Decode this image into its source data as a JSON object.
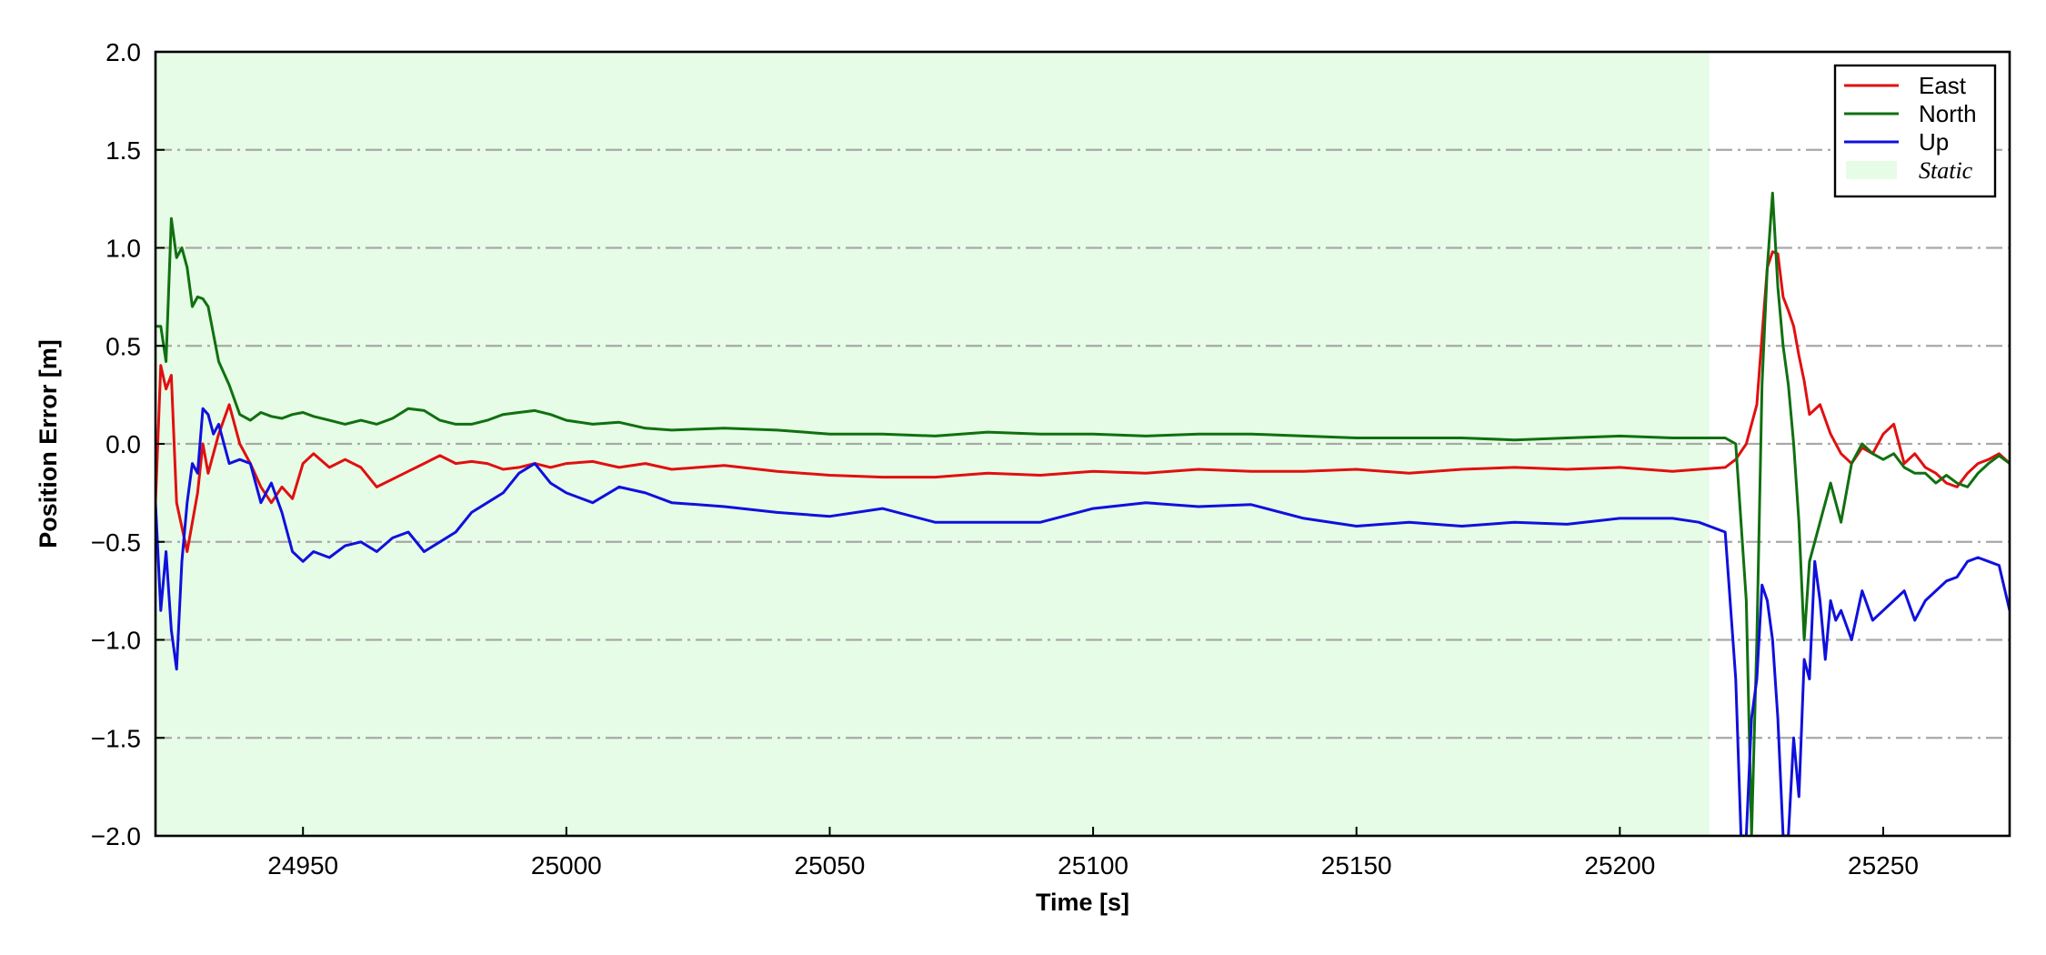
{
  "chart_data": {
    "type": "line",
    "title": "",
    "xlabel": "Time [s]",
    "ylabel": "Position Error [m]",
    "xlim": [
      24922,
      25274
    ],
    "ylim": [
      -2.0,
      2.0
    ],
    "x_ticks": [
      24950,
      25000,
      25050,
      25100,
      25150,
      25200,
      25250
    ],
    "y_ticks": [
      -2.0,
      -1.5,
      -1.0,
      -0.5,
      0.0,
      0.5,
      1.0,
      1.5,
      2.0
    ],
    "x_tick_labels": [
      "24950",
      "25000",
      "25050",
      "25100",
      "25150",
      "25200",
      "25250"
    ],
    "y_tick_labels": [
      "−2.0",
      "−1.5",
      "−1.0",
      "−0.5",
      "0.0",
      "0.5",
      "1.0",
      "1.5",
      "2.0"
    ],
    "grid": "horizontal dash-dot",
    "legend_position": "top-right",
    "static_region": {
      "label": "Static",
      "x_start": 24922,
      "x_end": 25217,
      "color": "#e6fce6"
    },
    "series": [
      {
        "name": "East",
        "color": "#e01010",
        "x": [
          24922,
          24923,
          24924,
          24925,
          24926,
          24928,
          24930,
          24931,
          24932,
          24934,
          24936,
          24938,
          24940,
          24942,
          24944,
          24946,
          24948,
          24950,
          24952,
          24955,
          24958,
          24961,
          24964,
          24967,
          24970,
          24973,
          24976,
          24979,
          24982,
          24985,
          24988,
          24991,
          24994,
          24997,
          25000,
          25005,
          25010,
          25015,
          25020,
          25030,
          25040,
          25050,
          25060,
          25070,
          25080,
          25090,
          25100,
          25110,
          25120,
          25130,
          25140,
          25150,
          25160,
          25170,
          25180,
          25190,
          25200,
          25210,
          25215,
          25220,
          25222,
          25224,
          25226,
          25227,
          25228,
          25229,
          25230,
          25231,
          25232,
          25233,
          25234,
          25235,
          25236,
          25238,
          25240,
          25242,
          25244,
          25246,
          25248,
          25250,
          25252,
          25254,
          25256,
          25258,
          25260,
          25262,
          25264,
          25266,
          25268,
          25270,
          25272,
          25274
        ],
        "y": [
          -0.3,
          0.4,
          0.28,
          0.35,
          -0.3,
          -0.55,
          -0.25,
          0.0,
          -0.15,
          0.05,
          0.2,
          0.0,
          -0.1,
          -0.22,
          -0.3,
          -0.22,
          -0.28,
          -0.1,
          -0.05,
          -0.12,
          -0.08,
          -0.12,
          -0.22,
          -0.18,
          -0.14,
          -0.1,
          -0.06,
          -0.1,
          -0.09,
          -0.1,
          -0.13,
          -0.12,
          -0.1,
          -0.12,
          -0.1,
          -0.09,
          -0.12,
          -0.1,
          -0.13,
          -0.11,
          -0.14,
          -0.16,
          -0.17,
          -0.17,
          -0.15,
          -0.16,
          -0.14,
          -0.15,
          -0.13,
          -0.14,
          -0.14,
          -0.13,
          -0.15,
          -0.13,
          -0.12,
          -0.13,
          -0.12,
          -0.14,
          -0.13,
          -0.12,
          -0.08,
          0.0,
          0.2,
          0.55,
          0.9,
          0.98,
          0.97,
          0.75,
          0.68,
          0.6,
          0.45,
          0.32,
          0.15,
          0.2,
          0.05,
          -0.05,
          -0.1,
          -0.02,
          -0.05,
          0.05,
          0.1,
          -0.1,
          -0.05,
          -0.12,
          -0.15,
          -0.2,
          -0.22,
          -0.15,
          -0.1,
          -0.08,
          -0.05,
          -0.1
        ]
      },
      {
        "name": "North",
        "color": "#107010",
        "x": [
          24922,
          24923,
          24924,
          24925,
          24926,
          24927,
          24928,
          24929,
          24930,
          24931,
          24932,
          24934,
          24936,
          24938,
          24940,
          24942,
          24944,
          24946,
          24948,
          24950,
          24952,
          24955,
          24958,
          24961,
          24964,
          24967,
          24970,
          24973,
          24976,
          24979,
          24982,
          24985,
          24988,
          24991,
          24994,
          24997,
          25000,
          25005,
          25010,
          25015,
          25020,
          25030,
          25040,
          25050,
          25060,
          25070,
          25080,
          25090,
          25100,
          25110,
          25120,
          25130,
          25140,
          25150,
          25160,
          25170,
          25180,
          25190,
          25200,
          25210,
          25215,
          25220,
          25222,
          25224,
          25225,
          25226,
          25227,
          25228,
          25229,
          25230,
          25231,
          25232,
          25233,
          25234,
          25235,
          25236,
          25238,
          25240,
          25242,
          25244,
          25246,
          25248,
          25250,
          25252,
          25254,
          25256,
          25258,
          25260,
          25262,
          25264,
          25266,
          25268,
          25270,
          25272,
          25274
        ],
        "y": [
          0.6,
          0.6,
          0.42,
          1.15,
          0.95,
          1.0,
          0.9,
          0.7,
          0.75,
          0.74,
          0.7,
          0.42,
          0.3,
          0.15,
          0.12,
          0.16,
          0.14,
          0.13,
          0.15,
          0.16,
          0.14,
          0.12,
          0.1,
          0.12,
          0.1,
          0.13,
          0.18,
          0.17,
          0.12,
          0.1,
          0.1,
          0.12,
          0.15,
          0.16,
          0.17,
          0.15,
          0.12,
          0.1,
          0.11,
          0.08,
          0.07,
          0.08,
          0.07,
          0.05,
          0.05,
          0.04,
          0.06,
          0.05,
          0.05,
          0.04,
          0.05,
          0.05,
          0.04,
          0.03,
          0.03,
          0.03,
          0.02,
          0.03,
          0.04,
          0.03,
          0.03,
          0.03,
          0.0,
          -0.8,
          -2.0,
          -1.0,
          0.3,
          0.9,
          1.28,
          0.8,
          0.5,
          0.3,
          0.0,
          -0.4,
          -1.0,
          -0.6,
          -0.4,
          -0.2,
          -0.4,
          -0.1,
          0.0,
          -0.05,
          -0.08,
          -0.05,
          -0.12,
          -0.15,
          -0.15,
          -0.2,
          -0.16,
          -0.2,
          -0.22,
          -0.15,
          -0.1,
          -0.06,
          -0.1
        ]
      },
      {
        "name": "Up",
        "color": "#1010dd",
        "x": [
          24922,
          24923,
          24924,
          24925,
          24926,
          24927,
          24928,
          24929,
          24930,
          24931,
          24932,
          24933,
          24934,
          24935,
          24936,
          24938,
          24940,
          24942,
          24944,
          24946,
          24948,
          24950,
          24952,
          24955,
          24958,
          24961,
          24964,
          24967,
          24970,
          24973,
          24976,
          24979,
          24982,
          24985,
          24988,
          24991,
          24994,
          24997,
          25000,
          25005,
          25010,
          25015,
          25020,
          25030,
          25040,
          25050,
          25060,
          25070,
          25080,
          25090,
          25100,
          25110,
          25120,
          25130,
          25140,
          25150,
          25160,
          25170,
          25180,
          25190,
          25200,
          25210,
          25215,
          25220,
          25222,
          25223,
          25224,
          25225,
          25226,
          25227,
          25228,
          25229,
          25230,
          25231,
          25232,
          25233,
          25234,
          25235,
          25236,
          25237,
          25238,
          25239,
          25240,
          25241,
          25242,
          25244,
          25246,
          25248,
          25250,
          25252,
          25254,
          25256,
          25258,
          25260,
          25262,
          25264,
          25266,
          25268,
          25270,
          25272,
          25274
        ],
        "y": [
          -0.3,
          -0.85,
          -0.55,
          -0.95,
          -1.15,
          -0.6,
          -0.3,
          -0.1,
          -0.15,
          0.18,
          0.15,
          0.05,
          0.1,
          0.0,
          -0.1,
          -0.08,
          -0.1,
          -0.3,
          -0.2,
          -0.35,
          -0.55,
          -0.6,
          -0.55,
          -0.58,
          -0.52,
          -0.5,
          -0.55,
          -0.48,
          -0.45,
          -0.55,
          -0.5,
          -0.45,
          -0.35,
          -0.3,
          -0.25,
          -0.15,
          -0.1,
          -0.2,
          -0.25,
          -0.3,
          -0.22,
          -0.25,
          -0.3,
          -0.32,
          -0.35,
          -0.37,
          -0.33,
          -0.4,
          -0.4,
          -0.4,
          -0.33,
          -0.3,
          -0.32,
          -0.31,
          -0.38,
          -0.42,
          -0.4,
          -0.42,
          -0.4,
          -0.41,
          -0.38,
          -0.38,
          -0.4,
          -0.45,
          -1.2,
          -2.0,
          -2.0,
          -1.4,
          -1.2,
          -0.72,
          -0.8,
          -1.0,
          -1.4,
          -2.0,
          -2.0,
          -1.5,
          -1.8,
          -1.1,
          -1.2,
          -0.6,
          -0.8,
          -1.1,
          -0.8,
          -0.9,
          -0.85,
          -1.0,
          -0.75,
          -0.9,
          -0.85,
          -0.8,
          -0.75,
          -0.9,
          -0.8,
          -0.75,
          -0.7,
          -0.68,
          -0.6,
          -0.58,
          -0.6,
          -0.62,
          -0.85
        ]
      }
    ]
  }
}
